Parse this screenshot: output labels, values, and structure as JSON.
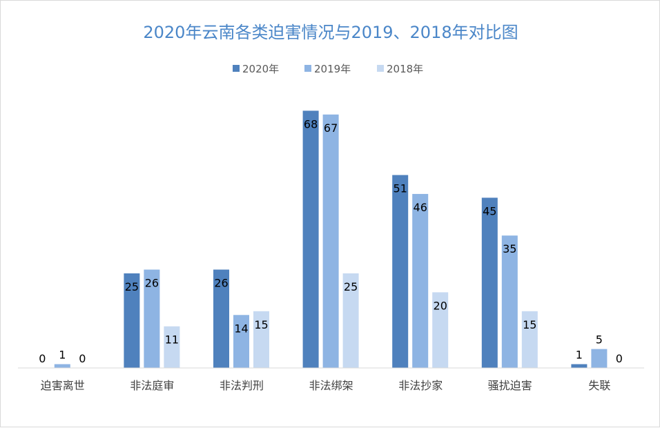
{
  "chart_data": {
    "type": "bar",
    "title": "2020年云南各类迫害情况与2019、2018年对比图",
    "xlabel": "",
    "ylabel": "",
    "ylim": [
      0,
      73
    ],
    "grid": false,
    "legend_position": "top",
    "categories": [
      "迫害离世",
      "非法庭审",
      "非法判刑",
      "非法绑架",
      "非法抄家",
      "骚扰迫害",
      "失联"
    ],
    "series": [
      {
        "name": "2020年",
        "color": "#4f81bd",
        "values": [
          0,
          25,
          26,
          68,
          51,
          45,
          1
        ]
      },
      {
        "name": "2019年",
        "color": "#8eb4e3",
        "values": [
          1,
          26,
          14,
          67,
          46,
          35,
          5
        ]
      },
      {
        "name": "2018年",
        "color": "#c6d9f1",
        "values": [
          0,
          11,
          15,
          25,
          20,
          15,
          0
        ]
      }
    ]
  }
}
